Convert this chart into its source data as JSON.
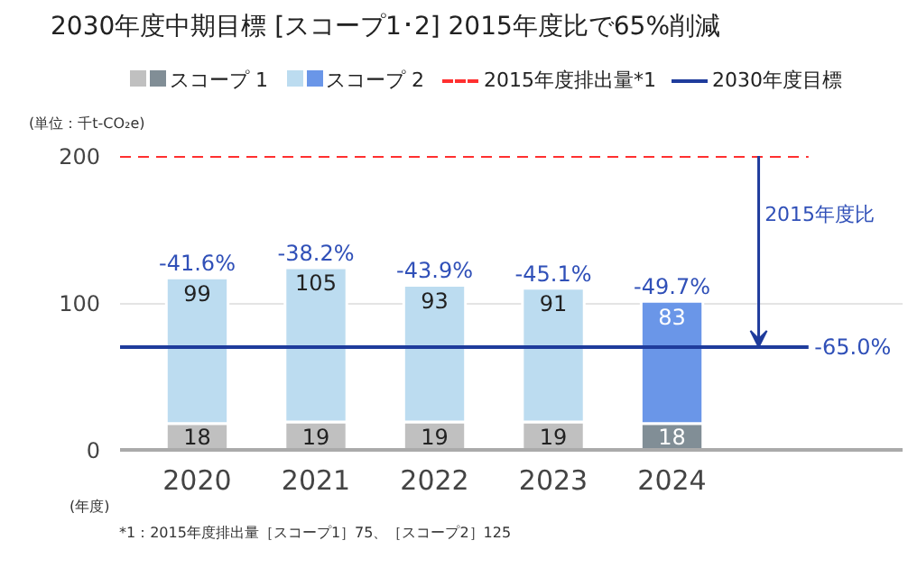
{
  "chart_data": {
    "type": "bar",
    "stacked": true,
    "title": "2030年度中期目標 [スコープ1･2] 2015年度比で65%削減",
    "ylabel": "(単位：千t-CO₂e)",
    "xlabel": "(年度)",
    "categories": [
      "2020",
      "2021",
      "2022",
      "2023",
      "2024"
    ],
    "series": [
      {
        "name": "スコープ 1",
        "colors": [
          "#c0c0c0",
          "#c0c0c0",
          "#c0c0c0",
          "#c0c0c0",
          "#818e96"
        ],
        "values": [
          18,
          19,
          19,
          19,
          18
        ]
      },
      {
        "name": "スコープ 2",
        "colors": [
          "#bcdcf0",
          "#bcdcf0",
          "#bcdcf0",
          "#bcdcf0",
          "#6a96e8"
        ],
        "values": [
          99,
          105,
          93,
          91,
          83
        ]
      }
    ],
    "data_labels": true,
    "ylim": [
      0,
      200
    ],
    "yticks": [
      0,
      100,
      200
    ],
    "grid": "y",
    "legend": "top",
    "ref_lines": [
      {
        "axis": "y",
        "value": 200,
        "label": "2015年度排出量*1",
        "color": "#ff3030",
        "line_style": "dashed"
      },
      {
        "axis": "y",
        "value": 70,
        "label": "2030年度目標",
        "color": "#1f3c9c",
        "line_style": "solid"
      }
    ],
    "annotations": [
      {
        "text": "-41.6%",
        "x": "2020",
        "y": 117
      },
      {
        "text": "-38.2%",
        "x": "2021",
        "y": 124
      },
      {
        "text": "-43.9%",
        "x": "2022",
        "y": 112
      },
      {
        "text": "-45.1%",
        "x": "2023",
        "y": 110
      },
      {
        "text": "-49.7%",
        "x": "2024",
        "y": 101
      },
      "-65.0%",
      "2015年度比",
      "*1：2015年度排出量［スコープ1］75、［スコープ2］125"
    ]
  }
}
